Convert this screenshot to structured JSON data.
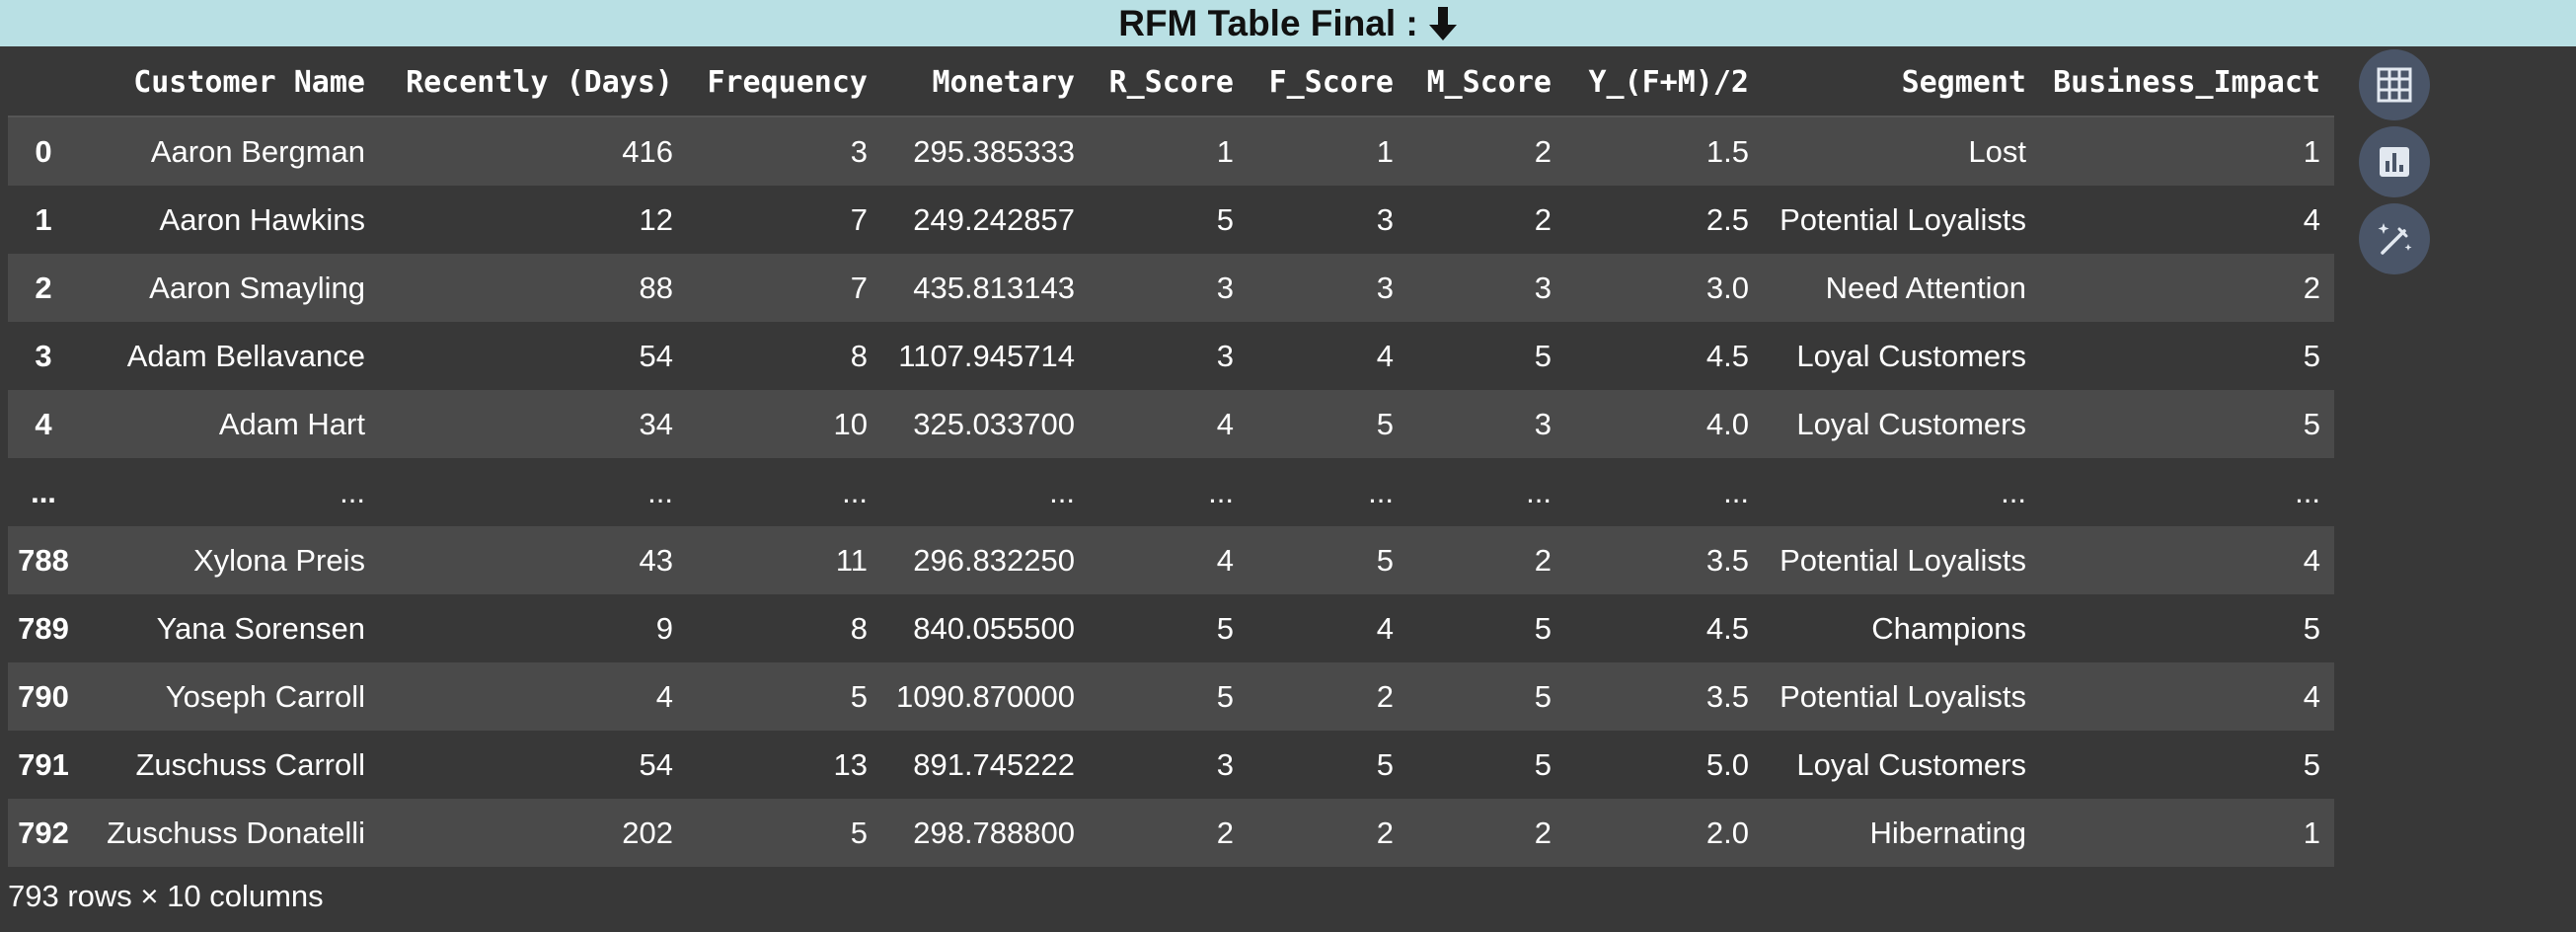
{
  "title": {
    "text": "RFM Table Final :",
    "icon": "down-arrow-icon"
  },
  "table": {
    "columns": [
      "",
      "Customer Name",
      "Recently (Days)",
      "Frequency",
      "Monetary",
      "R_Score",
      "F_Score",
      "M_Score",
      "Y_(F+M)/2",
      "Segment",
      "Business_Impact"
    ],
    "rows": [
      [
        "0",
        "Aaron Bergman",
        "416",
        "3",
        "295.385333",
        "1",
        "1",
        "2",
        "1.5",
        "Lost",
        "1"
      ],
      [
        "1",
        "Aaron Hawkins",
        "12",
        "7",
        "249.242857",
        "5",
        "3",
        "2",
        "2.5",
        "Potential Loyalists",
        "4"
      ],
      [
        "2",
        "Aaron Smayling",
        "88",
        "7",
        "435.813143",
        "3",
        "3",
        "3",
        "3.0",
        "Need Attention",
        "2"
      ],
      [
        "3",
        "Adam Bellavance",
        "54",
        "8",
        "1107.945714",
        "3",
        "4",
        "5",
        "4.5",
        "Loyal Customers",
        "5"
      ],
      [
        "4",
        "Adam Hart",
        "34",
        "10",
        "325.033700",
        "4",
        "5",
        "3",
        "4.0",
        "Loyal Customers",
        "5"
      ],
      [
        "...",
        "...",
        "...",
        "...",
        "...",
        "...",
        "...",
        "...",
        "...",
        "...",
        "..."
      ],
      [
        "788",
        "Xylona Preis",
        "43",
        "11",
        "296.832250",
        "4",
        "5",
        "2",
        "3.5",
        "Potential Loyalists",
        "4"
      ],
      [
        "789",
        "Yana Sorensen",
        "9",
        "8",
        "840.055500",
        "5",
        "4",
        "5",
        "4.5",
        "Champions",
        "5"
      ],
      [
        "790",
        "Yoseph Carroll",
        "4",
        "5",
        "1090.870000",
        "5",
        "2",
        "5",
        "3.5",
        "Potential Loyalists",
        "4"
      ],
      [
        "791",
        "Zuschuss Carroll",
        "54",
        "13",
        "891.745222",
        "3",
        "5",
        "5",
        "5.0",
        "Loyal Customers",
        "5"
      ],
      [
        "792",
        "Zuschuss Donatelli",
        "202",
        "5",
        "298.788800",
        "2",
        "2",
        "2",
        "2.0",
        "Hibernating",
        "1"
      ]
    ]
  },
  "footer": {
    "text": "793 rows × 10 columns"
  },
  "side_buttons": [
    {
      "icon": "table-icon"
    },
    {
      "icon": "bar-chart-icon"
    },
    {
      "icon": "magic-wand-icon"
    }
  ],
  "colors": {
    "title_bar": "#b9e0e4",
    "background": "#383838",
    "row_odd": "#4a4a4a",
    "button": "#4a5568",
    "button_icon": "#e2e8f0"
  }
}
